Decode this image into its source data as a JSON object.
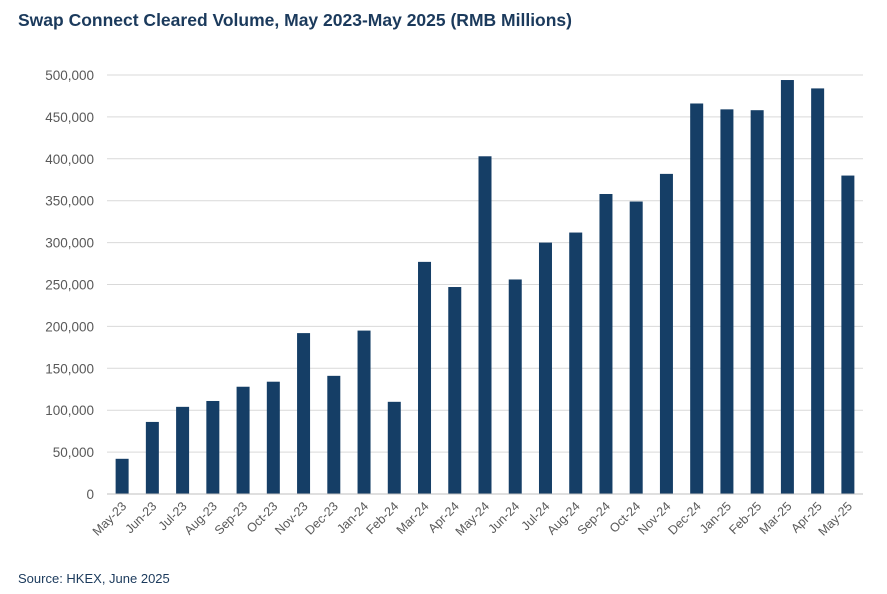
{
  "header": {
    "title": "Swap Connect Cleared Volume, May 2023-May 2025 (RMB Millions)"
  },
  "footer": {
    "source": "Source: HKEX, June 2025"
  },
  "colors": {
    "bar": "#153e66",
    "grid": "#d9d9d9",
    "axis": "#bfbfbf",
    "text": "#595959"
  },
  "chart_data": {
    "type": "bar",
    "title": "Swap Connect Cleared Volume, May 2023-May 2025 (RMB Millions)",
    "xlabel": "",
    "ylabel": "",
    "ylim": [
      0,
      500000
    ],
    "yticks": [
      0,
      50000,
      100000,
      150000,
      200000,
      250000,
      300000,
      350000,
      400000,
      450000,
      500000
    ],
    "grid": true,
    "legend": "none",
    "categories": [
      "May-23",
      "Jun-23",
      "Jul-23",
      "Aug-23",
      "Sep-23",
      "Oct-23",
      "Nov-23",
      "Dec-23",
      "Jan-24",
      "Feb-24",
      "Mar-24",
      "Apr-24",
      "May-24",
      "Jun-24",
      "Jul-24",
      "Aug-24",
      "Sep-24",
      "Oct-24",
      "Nov-24",
      "Dec-24",
      "Jan-25",
      "Feb-25",
      "Mar-25",
      "Apr-25",
      "May-25"
    ],
    "series": [
      {
        "name": "Cleared Volume",
        "values": [
          42000,
          86000,
          104000,
          111000,
          128000,
          134000,
          192000,
          141000,
          195000,
          110000,
          277000,
          247000,
          403000,
          256000,
          300000,
          312000,
          358000,
          349000,
          382000,
          466000,
          459000,
          458000,
          494000,
          484000,
          380000
        ]
      }
    ]
  }
}
